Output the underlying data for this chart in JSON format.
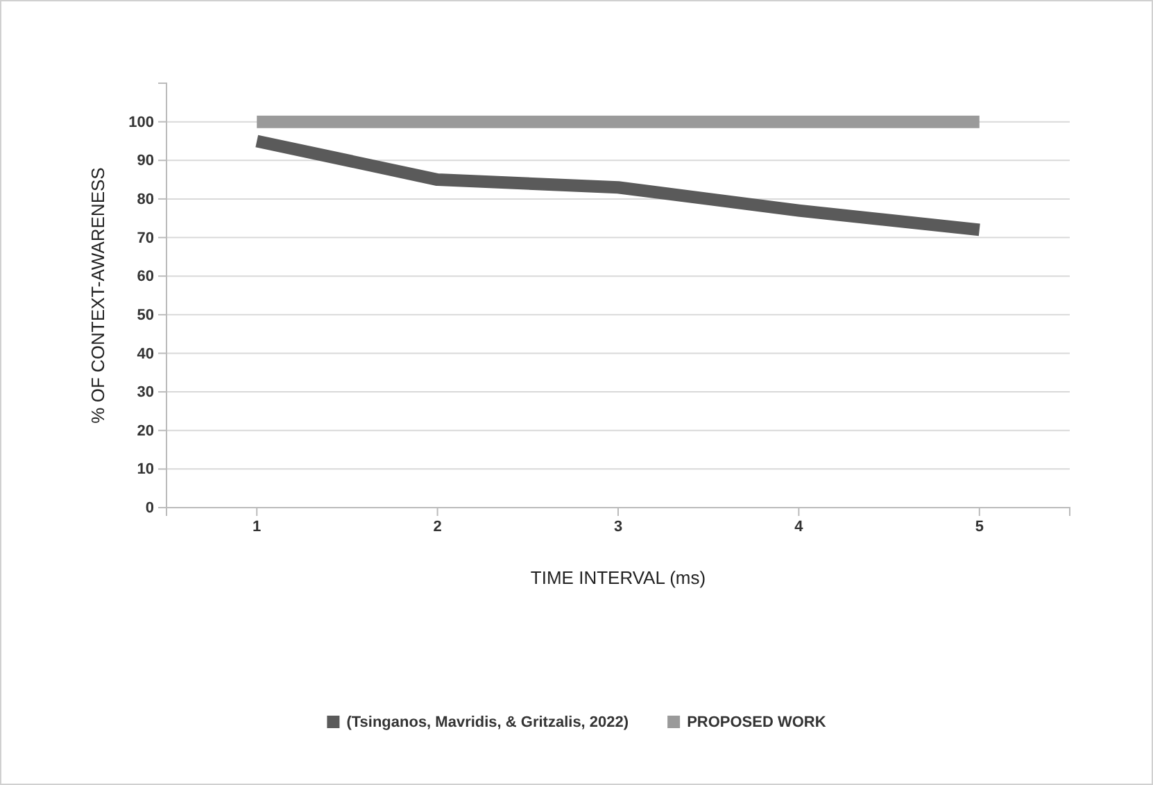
{
  "chart_data": {
    "type": "line",
    "xlabel": "TIME INTERVAL (ms)",
    "ylabel": "% OF CONTEXT-AWARENESS",
    "categories": [
      "1",
      "2",
      "3",
      "4",
      "5"
    ],
    "series": [
      {
        "name": "(Tsinganos, Mavridis, & Gritzalis, 2022)",
        "color": "#5a5a5a",
        "values": [
          95,
          85,
          83,
          77,
          72
        ]
      },
      {
        "name": "PROPOSED WORK",
        "color": "#9a9a9a",
        "values": [
          100,
          100,
          100,
          100,
          100
        ]
      }
    ],
    "ylim": [
      0,
      110
    ],
    "yticks": [
      0,
      10,
      20,
      30,
      40,
      50,
      60,
      70,
      80,
      90,
      100
    ],
    "grid": "y",
    "legend": "bottom",
    "marker": "none",
    "line_style": "solid"
  }
}
